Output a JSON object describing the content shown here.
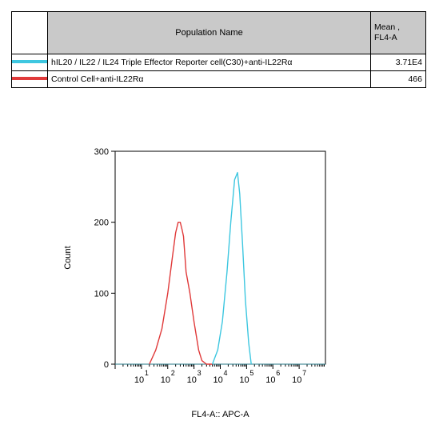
{
  "legend_table": {
    "header_name": "Population Name",
    "header_mean_line1": "Mean ,",
    "header_mean_line2": "FL4-A",
    "rows": [
      {
        "name": "hIL20 / IL22 / IL24 Triple Effector Reporter cell(C30)+anti-IL22Rα",
        "mean": "3.71E4",
        "color": "#3ec7e0"
      },
      {
        "name": "Control Cell+anti-IL22Rα",
        "mean": "466",
        "color": "#e03a3a"
      }
    ]
  },
  "chart_data": {
    "type": "line",
    "xlabel": "FL4-A:: APC-A",
    "ylabel": "Count",
    "xscale": "log",
    "xlim": [
      0,
      100000000
    ],
    "ylim": [
      0,
      300
    ],
    "yticks": [
      0,
      100,
      200,
      300
    ],
    "xticks": [
      {
        "value": 10,
        "label": "1"
      },
      {
        "value": 100,
        "label": "2"
      },
      {
        "value": 1000,
        "label": "3"
      },
      {
        "value": 10000,
        "label": "4"
      },
      {
        "value": 100000,
        "label": "5"
      },
      {
        "value": 1000000,
        "label": "6"
      },
      {
        "value": 10000000,
        "label": "7"
      }
    ],
    "xtick_base": "10",
    "series": [
      {
        "name": "Control Cell+anti-IL22Rα",
        "color": "#e03a3a",
        "x": [
          20,
          35,
          60,
          100,
          150,
          200,
          250,
          300,
          350,
          400,
          500,
          700,
          1000,
          1500,
          2000,
          3000,
          5000
        ],
        "y": [
          0,
          20,
          50,
          100,
          150,
          185,
          200,
          200,
          190,
          180,
          130,
          100,
          60,
          20,
          5,
          0,
          0
        ]
      },
      {
        "name": "hIL20 / IL22 / IL24 Triple Effector Reporter cell(C30)+anti-IL22Rα",
        "color": "#3ec7e0",
        "x": [
          5000,
          8000,
          12000,
          18000,
          25000,
          35000,
          45000,
          55000,
          70000,
          90000,
          120000,
          150000
        ],
        "y": [
          0,
          20,
          60,
          130,
          200,
          260,
          270,
          240,
          170,
          90,
          30,
          0
        ]
      }
    ]
  }
}
